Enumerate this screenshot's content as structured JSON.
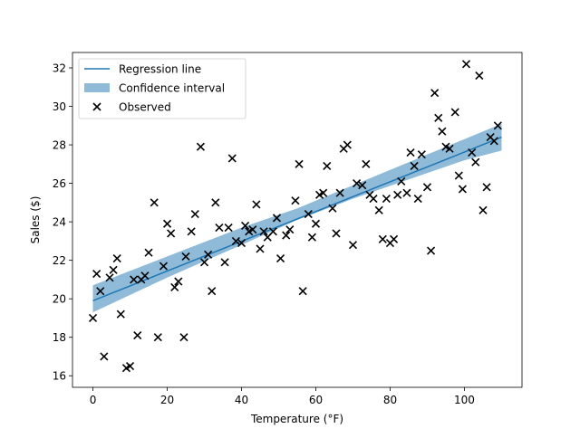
{
  "chart_data": {
    "type": "scatter",
    "title": "",
    "xlabel": "Temperature (°F)",
    "ylabel": "Sales ($)",
    "xlim": [
      -5.5,
      115.5
    ],
    "ylim": [
      15.4,
      32.8
    ],
    "xticks": [
      0,
      20,
      40,
      60,
      80,
      100
    ],
    "yticks": [
      16,
      18,
      20,
      22,
      24,
      26,
      28,
      30,
      32
    ],
    "grid": false,
    "legend_position": "top-left",
    "legend": [
      {
        "label": "Regression line",
        "kind": "line"
      },
      {
        "label": "Confidence interval",
        "kind": "patch"
      },
      {
        "label": "Observed",
        "kind": "marker"
      }
    ],
    "regression_line": {
      "x": [
        0,
        110
      ],
      "y": [
        19.9,
        28.4
      ]
    },
    "confidence_interval": {
      "x": [
        0,
        20,
        40,
        55,
        70,
        85,
        100,
        110
      ],
      "lower": [
        19.3,
        21.1,
        22.8,
        24.1,
        25.2,
        26.2,
        27.2,
        27.7
      ],
      "upper": [
        20.7,
        22.2,
        23.7,
        24.7,
        25.9,
        27.1,
        28.3,
        29.1
      ]
    },
    "colors": {
      "line": "#1f77b4",
      "band": "#1f77b4",
      "marker": "#000000"
    },
    "observed": [
      {
        "x": 0,
        "y": 19.0
      },
      {
        "x": 1,
        "y": 21.3
      },
      {
        "x": 2,
        "y": 20.4
      },
      {
        "x": 3,
        "y": 17.0
      },
      {
        "x": 4.5,
        "y": 21.1
      },
      {
        "x": 5.5,
        "y": 21.5
      },
      {
        "x": 6.5,
        "y": 22.1
      },
      {
        "x": 7.5,
        "y": 19.2
      },
      {
        "x": 9,
        "y": 16.4
      },
      {
        "x": 10,
        "y": 16.5
      },
      {
        "x": 11,
        "y": 21.0
      },
      {
        "x": 12,
        "y": 18.1
      },
      {
        "x": 13,
        "y": 21.0
      },
      {
        "x": 14,
        "y": 21.2
      },
      {
        "x": 15,
        "y": 22.4
      },
      {
        "x": 16.5,
        "y": 25.0
      },
      {
        "x": 17.5,
        "y": 18.0
      },
      {
        "x": 19,
        "y": 21.7
      },
      {
        "x": 20,
        "y": 23.9
      },
      {
        "x": 21,
        "y": 23.4
      },
      {
        "x": 22,
        "y": 20.6
      },
      {
        "x": 23,
        "y": 20.9
      },
      {
        "x": 24.5,
        "y": 18.0
      },
      {
        "x": 25,
        "y": 22.2
      },
      {
        "x": 26.5,
        "y": 23.5
      },
      {
        "x": 27.5,
        "y": 24.4
      },
      {
        "x": 29,
        "y": 27.9
      },
      {
        "x": 30,
        "y": 21.9
      },
      {
        "x": 31,
        "y": 22.3
      },
      {
        "x": 32,
        "y": 20.4
      },
      {
        "x": 33,
        "y": 25.0
      },
      {
        "x": 34,
        "y": 23.7
      },
      {
        "x": 35.5,
        "y": 21.9
      },
      {
        "x": 36.5,
        "y": 23.7
      },
      {
        "x": 37.5,
        "y": 27.3
      },
      {
        "x": 38.5,
        "y": 23.0
      },
      {
        "x": 40,
        "y": 22.9
      },
      {
        "x": 41,
        "y": 23.8
      },
      {
        "x": 42,
        "y": 23.5
      },
      {
        "x": 43,
        "y": 23.6
      },
      {
        "x": 44,
        "y": 24.9
      },
      {
        "x": 45,
        "y": 22.6
      },
      {
        "x": 46,
        "y": 23.5
      },
      {
        "x": 47,
        "y": 23.2
      },
      {
        "x": 48.5,
        "y": 23.5
      },
      {
        "x": 49.5,
        "y": 24.2
      },
      {
        "x": 50.5,
        "y": 22.1
      },
      {
        "x": 52,
        "y": 23.3
      },
      {
        "x": 53,
        "y": 23.6
      },
      {
        "x": 54.5,
        "y": 25.1
      },
      {
        "x": 55.5,
        "y": 27.0
      },
      {
        "x": 56.5,
        "y": 20.4
      },
      {
        "x": 58,
        "y": 24.4
      },
      {
        "x": 59,
        "y": 23.2
      },
      {
        "x": 60,
        "y": 23.9
      },
      {
        "x": 61,
        "y": 25.4
      },
      {
        "x": 62,
        "y": 25.5
      },
      {
        "x": 63,
        "y": 26.9
      },
      {
        "x": 64.5,
        "y": 24.7
      },
      {
        "x": 65.5,
        "y": 23.4
      },
      {
        "x": 66.5,
        "y": 25.5
      },
      {
        "x": 67.5,
        "y": 27.8
      },
      {
        "x": 68.5,
        "y": 28.0
      },
      {
        "x": 70,
        "y": 22.8
      },
      {
        "x": 71,
        "y": 26.0
      },
      {
        "x": 72.5,
        "y": 25.9
      },
      {
        "x": 73.5,
        "y": 27.0
      },
      {
        "x": 74.5,
        "y": 25.4
      },
      {
        "x": 75.5,
        "y": 25.2
      },
      {
        "x": 77,
        "y": 24.6
      },
      {
        "x": 78,
        "y": 23.1
      },
      {
        "x": 79,
        "y": 25.2
      },
      {
        "x": 80,
        "y": 22.9
      },
      {
        "x": 81,
        "y": 23.1
      },
      {
        "x": 82,
        "y": 25.4
      },
      {
        "x": 83,
        "y": 26.1
      },
      {
        "x": 84.5,
        "y": 25.5
      },
      {
        "x": 85.5,
        "y": 27.6
      },
      {
        "x": 86.5,
        "y": 26.9
      },
      {
        "x": 87.5,
        "y": 25.2
      },
      {
        "x": 88.5,
        "y": 27.5
      },
      {
        "x": 90,
        "y": 25.8
      },
      {
        "x": 91,
        "y": 22.5
      },
      {
        "x": 92,
        "y": 30.7
      },
      {
        "x": 93,
        "y": 29.4
      },
      {
        "x": 94,
        "y": 28.7
      },
      {
        "x": 95,
        "y": 27.9
      },
      {
        "x": 96,
        "y": 27.8
      },
      {
        "x": 97.5,
        "y": 29.7
      },
      {
        "x": 98.5,
        "y": 26.4
      },
      {
        "x": 99.5,
        "y": 25.7
      },
      {
        "x": 100.5,
        "y": 32.2
      },
      {
        "x": 102,
        "y": 27.6
      },
      {
        "x": 103,
        "y": 27.1
      },
      {
        "x": 104,
        "y": 31.6
      },
      {
        "x": 105,
        "y": 24.6
      },
      {
        "x": 106,
        "y": 25.8
      },
      {
        "x": 107,
        "y": 28.4
      },
      {
        "x": 108,
        "y": 28.2
      },
      {
        "x": 109,
        "y": 29.0
      }
    ]
  }
}
